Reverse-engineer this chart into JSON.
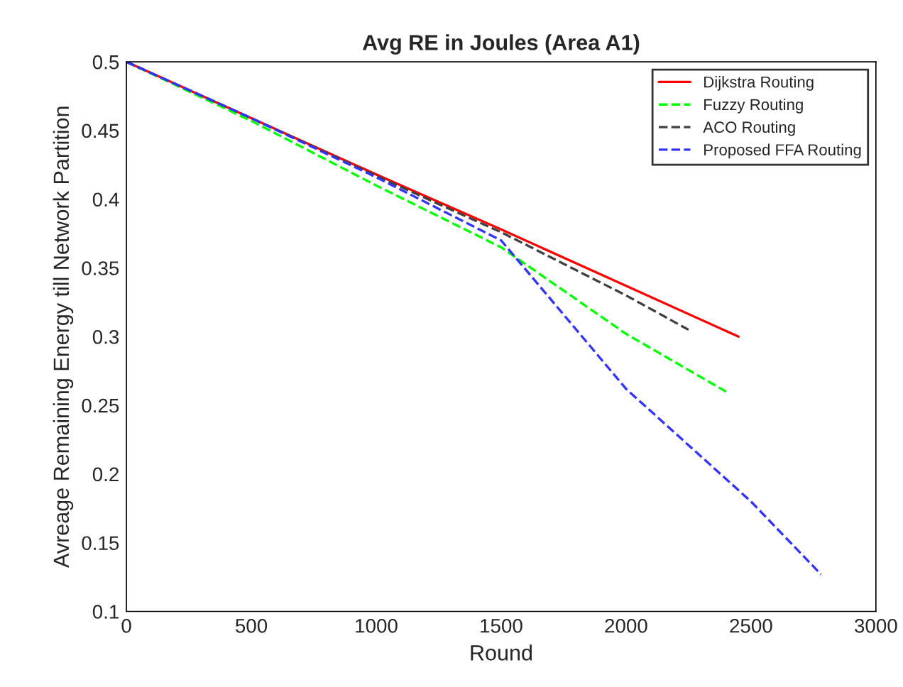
{
  "chart_data": {
    "type": "line",
    "title": "Avg RE in Joules (Area A1)",
    "xlabel": "Round",
    "ylabel": "Avreage Remaining Energy till Network Partition",
    "xlim": [
      0,
      3000
    ],
    "xticks": [
      0,
      500,
      1000,
      1500,
      2000,
      2500,
      3000
    ],
    "ylim": [
      0.1,
      0.5
    ],
    "yticks": [
      0.1,
      0.15,
      0.2,
      0.25,
      0.3,
      0.35,
      0.4,
      0.45,
      0.5
    ],
    "grid": false,
    "legend": "top right",
    "marker": "none",
    "series": [
      {
        "name": "Dijkstra Routing",
        "color": "#ff0000",
        "line_style": "solid",
        "x": [
          0,
          500,
          1000,
          1500,
          2000,
          2450
        ],
        "values": [
          0.5,
          0.459,
          0.418,
          0.378,
          0.337,
          0.3
        ]
      },
      {
        "name": "Fuzzy Routing",
        "color": "#00ff00",
        "line_style": "dashed",
        "x": [
          0,
          500,
          1000,
          1500,
          2000,
          2400
        ],
        "values": [
          0.5,
          0.457,
          0.41,
          0.365,
          0.302,
          0.26
        ]
      },
      {
        "name": "ACO Routing",
        "color": "#404040",
        "line_style": "dashed",
        "x": [
          0,
          500,
          1000,
          1500,
          2000,
          2250
        ],
        "values": [
          0.5,
          0.459,
          0.417,
          0.376,
          0.33,
          0.305
        ]
      },
      {
        "name": "Proposed FFA Routing",
        "color": "#3333ff",
        "line_style": "dashed",
        "x": [
          0,
          500,
          1000,
          1500,
          2000,
          2500,
          2780
        ],
        "values": [
          0.5,
          0.459,
          0.416,
          0.37,
          0.262,
          0.18,
          0.127
        ]
      }
    ]
  }
}
